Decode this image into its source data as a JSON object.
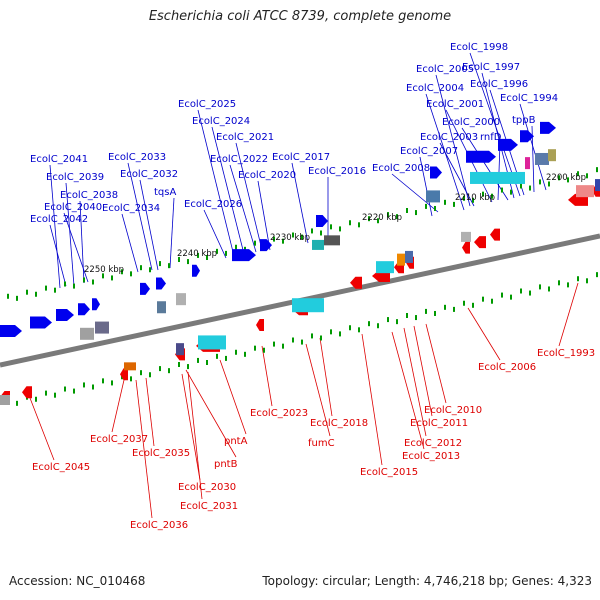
{
  "title": "Escherichia coli ATCC 8739, complete genome",
  "footer": {
    "accession": "Accession: NC_010468",
    "summary": "Topology: circular; Length: 4,746,218 bp; Genes: 4,323"
  },
  "colors": {
    "forward_label": "#0000cc",
    "reverse_label": "#dd0000",
    "forward_gene": "#0000ee",
    "reverse_gene": "#ee0000",
    "backbone": "#808080",
    "tick": "#009900"
  },
  "ruler_labels": [
    "2200 kbp",
    "2210 kbp",
    "2220 kbp",
    "2230 kbp",
    "2240 kbp",
    "2250 kbp"
  ],
  "forward_labels": [
    "EcolC_1998",
    "EcolC_1997",
    "EcolC_2005",
    "EcolC_1996",
    "EcolC_2004",
    "EcolC_1994",
    "EcolC_2001",
    "EcolC_2000",
    "tppB",
    "EcolC_2025",
    "EcolC_2024",
    "EcolC_2003",
    "rnfD",
    "EcolC_2021",
    "EcolC_2007",
    "EcolC_2033",
    "EcolC_2041",
    "EcolC_2022",
    "EcolC_2017",
    "EcolC_2032",
    "EcolC_2016",
    "EcolC_2008",
    "EcolC_2039",
    "EcolC_2020",
    "tqsA",
    "EcolC_2038",
    "EcolC_2026",
    "EcolC_2040",
    "EcolC_2034",
    "EcolC_2042"
  ],
  "reverse_labels": [
    "EcolC_1993",
    "EcolC_2006",
    "EcolC_2010",
    "EcolC_2023",
    "EcolC_2011",
    "EcolC_2018",
    "EcolC_2037",
    "pntA",
    "EcolC_2012",
    "fumC",
    "EcolC_2035",
    "EcolC_2013",
    "pntB",
    "EcolC_2045",
    "EcolC_2015",
    "EcolC_2030",
    "EcolC_2031",
    "EcolC_2036"
  ]
}
